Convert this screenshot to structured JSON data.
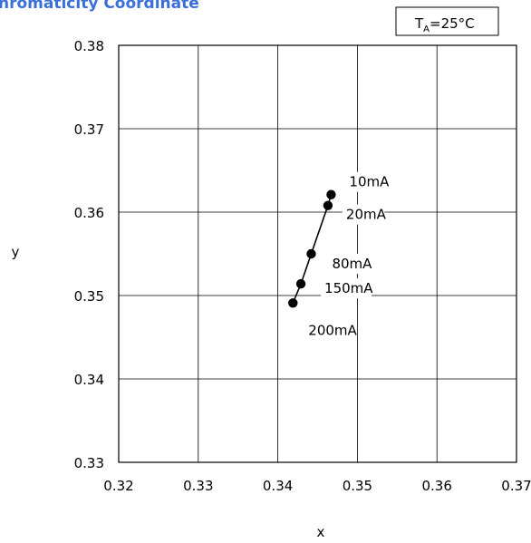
{
  "chart_data": {
    "type": "line",
    "title": "hromaticity Coordinate",
    "condition": {
      "main": "T",
      "sub": "A",
      "rest": "=25°C"
    },
    "xlabel": "x",
    "ylabel": "y",
    "xlim": [
      0.32,
      0.37
    ],
    "ylim": [
      0.33,
      0.38
    ],
    "xticks": [
      "0.32",
      "0.33",
      "0.34",
      "0.35",
      "0.36",
      "0.37"
    ],
    "yticks": [
      "0.33",
      "0.34",
      "0.35",
      "0.36",
      "0.37",
      "0.38"
    ],
    "grid": true,
    "series": [
      {
        "points": [
          {
            "x": 0.3467,
            "y": 0.3621,
            "label": "10mA"
          },
          {
            "x": 0.3463,
            "y": 0.3608,
            "label": "20mA"
          },
          {
            "x": 0.3442,
            "y": 0.355,
            "label": "80mA"
          },
          {
            "x": 0.3429,
            "y": 0.3514,
            "label": "150mA"
          },
          {
            "x": 0.3419,
            "y": 0.3491,
            "label": "200mA"
          }
        ]
      }
    ],
    "colors": {
      "title": "#3b6fd8",
      "line": "#000000",
      "grid": "#000000"
    }
  }
}
